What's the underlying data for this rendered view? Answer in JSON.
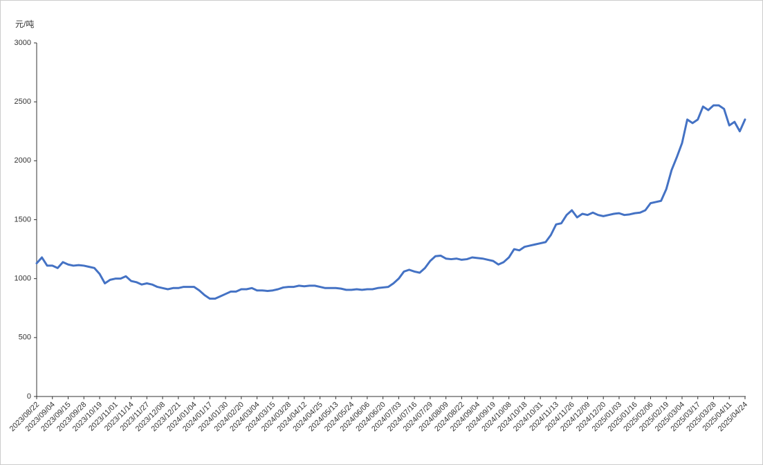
{
  "chart_data": {
    "type": "line",
    "y_label": "元/吨",
    "categories": [
      "2023/08/22",
      null,
      null,
      "2023/09/04",
      null,
      null,
      "2023/09/15",
      null,
      null,
      "2023/09/28",
      null,
      null,
      "2023/10/19",
      null,
      null,
      "2023/11/01",
      null,
      null,
      "2023/11/14",
      null,
      null,
      "2023/11/27",
      null,
      null,
      "2023/12/08",
      null,
      null,
      "2023/12/21",
      null,
      null,
      "2024/01/04",
      null,
      null,
      "2024/01/17",
      null,
      null,
      "2024/01/30",
      null,
      null,
      "2024/02/20",
      null,
      null,
      "2024/03/04",
      null,
      null,
      "2024/03/15",
      null,
      null,
      "2024/03/28",
      null,
      null,
      "2024/04/12",
      null,
      null,
      "2024/04/25",
      null,
      null,
      "2024/05/13",
      null,
      null,
      "2024/05/24",
      null,
      null,
      "2024/06/06",
      null,
      null,
      "2024/06/20",
      null,
      null,
      "2024/07/03",
      null,
      null,
      "2024/07/16",
      null,
      null,
      "2024/07/29",
      null,
      null,
      "2024/08/09",
      null,
      null,
      "2024/08/22",
      null,
      null,
      "2024/09/04",
      null,
      null,
      "2024/09/19",
      null,
      null,
      "2024/10/08",
      null,
      null,
      "2024/10/18",
      null,
      null,
      "2024/10/31",
      null,
      null,
      "2024/11/13",
      null,
      null,
      "2024/11/26",
      null,
      null,
      "2024/12/09",
      null,
      null,
      "2024/12/20",
      null,
      null,
      "2025/01/03",
      null,
      null,
      "2025/01/16",
      null,
      null,
      "2025/02/06",
      null,
      null,
      "2025/02/19",
      null,
      null,
      "2025/03/04",
      null,
      null,
      "2025/03/17",
      null,
      null,
      "2025/03/28",
      null,
      null,
      "2025/04/11",
      null,
      null,
      "2025/04/24"
    ],
    "series": [
      {
        "color": "#4472c4",
        "values": [
          1130,
          1180,
          1110,
          1110,
          1090,
          1140,
          1120,
          1110,
          1115,
          1110,
          1100,
          1090,
          1040,
          960,
          990,
          1000,
          1000,
          1020,
          980,
          970,
          950,
          960,
          950,
          930,
          920,
          910,
          920,
          920,
          930,
          930,
          930,
          900,
          860,
          830,
          830,
          850,
          870,
          890,
          890,
          910,
          910,
          920,
          900,
          900,
          895,
          900,
          910,
          925,
          930,
          930,
          940,
          935,
          940,
          940,
          930,
          920,
          920,
          920,
          915,
          905,
          905,
          910,
          905,
          910,
          910,
          920,
          925,
          930,
          960,
          1000,
          1060,
          1075,
          1060,
          1050,
          1090,
          1150,
          1190,
          1195,
          1170,
          1165,
          1170,
          1160,
          1165,
          1180,
          1175,
          1170,
          1160,
          1150,
          1120,
          1140,
          1180,
          1250,
          1240,
          1270,
          1280,
          1290,
          1300,
          1310,
          1370,
          1460,
          1470,
          1540,
          1580,
          1520,
          1550,
          1540,
          1560,
          1540,
          1530,
          1540,
          1550,
          1555,
          1540,
          1545,
          1555,
          1560,
          1580,
          1640,
          1650,
          1660,
          1760,
          1920,
          2030,
          2150,
          2350,
          2320,
          2350,
          2460,
          2430,
          2470,
          2470,
          2440,
          2300,
          2330,
          2250,
          2350
        ]
      }
    ],
    "ylim": [
      0,
      3000
    ],
    "yticks": [
      0,
      500,
      1000,
      1500,
      2000,
      2500,
      3000
    ],
    "grid": false
  }
}
